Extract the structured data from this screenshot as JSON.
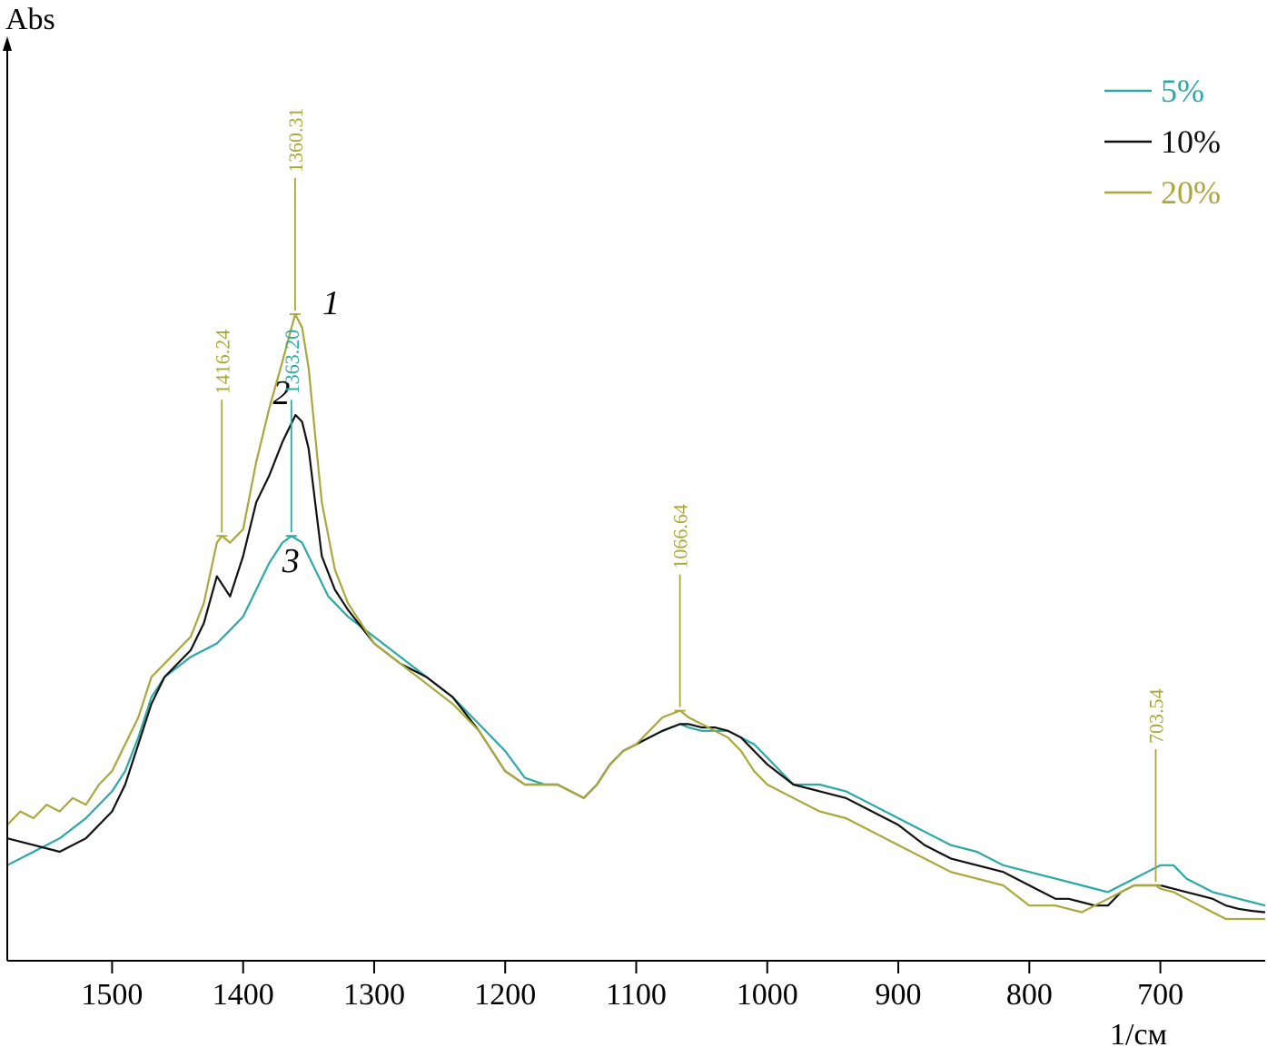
{
  "chart_data": {
    "type": "line",
    "ylabel": "Abs",
    "xlabel": "1/см",
    "xlim": [
      1580,
      620
    ],
    "x_ticks": [
      1500,
      1400,
      1300,
      1200,
      1100,
      1000,
      900,
      800,
      700
    ],
    "y_ticks_shown": false,
    "grid": false,
    "legend_position": "top-right",
    "colors": {
      "s5": "#2aa9a6",
      "s10": "#111111",
      "s20": "#a9a83a"
    },
    "series": [
      {
        "name": "5%",
        "curve_label": "3",
        "color": "#2aa9a6",
        "x": [
          1580,
          1560,
          1540,
          1520,
          1500,
          1490,
          1480,
          1470,
          1460,
          1440,
          1420,
          1410,
          1400,
          1390,
          1380,
          1370,
          1363.2,
          1355,
          1345,
          1335,
          1320,
          1300,
          1280,
          1260,
          1240,
          1220,
          1200,
          1185,
          1170,
          1160,
          1150,
          1140,
          1130,
          1120,
          1110,
          1100,
          1090,
          1080,
          1066.6,
          1060,
          1050,
          1040,
          1030,
          1020,
          1010,
          1000,
          980,
          960,
          940,
          920,
          900,
          880,
          860,
          840,
          820,
          800,
          780,
          760,
          740,
          730,
          720,
          710,
          700,
          690,
          680,
          670,
          660,
          650,
          640,
          630,
          620
        ],
        "y": [
          0.08,
          0.1,
          0.12,
          0.15,
          0.19,
          0.22,
          0.27,
          0.33,
          0.36,
          0.39,
          0.41,
          0.43,
          0.45,
          0.49,
          0.53,
          0.56,
          0.57,
          0.56,
          0.52,
          0.48,
          0.45,
          0.42,
          0.39,
          0.36,
          0.33,
          0.29,
          0.25,
          0.21,
          0.2,
          0.2,
          0.19,
          0.18,
          0.2,
          0.23,
          0.25,
          0.26,
          0.27,
          0.28,
          0.29,
          0.285,
          0.28,
          0.28,
          0.28,
          0.27,
          0.26,
          0.24,
          0.2,
          0.2,
          0.19,
          0.17,
          0.15,
          0.13,
          0.11,
          0.1,
          0.08,
          0.07,
          0.06,
          0.05,
          0.04,
          0.05,
          0.06,
          0.07,
          0.08,
          0.08,
          0.06,
          0.05,
          0.04,
          0.035,
          0.03,
          0.025,
          0.02
        ]
      },
      {
        "name": "10%",
        "curve_label": "2",
        "color": "#111111",
        "x": [
          1580,
          1560,
          1540,
          1520,
          1500,
          1490,
          1480,
          1470,
          1460,
          1440,
          1430,
          1420,
          1410,
          1400,
          1390,
          1380,
          1370,
          1360,
          1355,
          1350,
          1345,
          1340,
          1330,
          1320,
          1300,
          1280,
          1260,
          1240,
          1220,
          1200,
          1185,
          1170,
          1160,
          1150,
          1140,
          1130,
          1120,
          1110,
          1100,
          1090,
          1080,
          1066.6,
          1060,
          1050,
          1040,
          1030,
          1020,
          1010,
          1000,
          980,
          960,
          940,
          920,
          900,
          880,
          860,
          840,
          820,
          800,
          780,
          770,
          760,
          750,
          740,
          730,
          720,
          710,
          700,
          690,
          680,
          670,
          660,
          650,
          640,
          630,
          620
        ],
        "y": [
          0.12,
          0.11,
          0.1,
          0.12,
          0.16,
          0.2,
          0.26,
          0.32,
          0.36,
          0.4,
          0.44,
          0.51,
          0.48,
          0.54,
          0.62,
          0.66,
          0.71,
          0.75,
          0.74,
          0.7,
          0.62,
          0.54,
          0.49,
          0.46,
          0.41,
          0.38,
          0.36,
          0.33,
          0.28,
          0.22,
          0.2,
          0.2,
          0.2,
          0.19,
          0.18,
          0.2,
          0.23,
          0.25,
          0.26,
          0.27,
          0.28,
          0.29,
          0.29,
          0.285,
          0.285,
          0.28,
          0.27,
          0.25,
          0.23,
          0.2,
          0.19,
          0.18,
          0.16,
          0.14,
          0.11,
          0.09,
          0.08,
          0.07,
          0.05,
          0.03,
          0.03,
          0.025,
          0.02,
          0.02,
          0.04,
          0.05,
          0.05,
          0.05,
          0.045,
          0.04,
          0.035,
          0.03,
          0.02,
          0.015,
          0.012,
          0.01
        ]
      },
      {
        "name": "20%",
        "curve_label": "1",
        "color": "#a9a83a",
        "x": [
          1580,
          1570,
          1560,
          1550,
          1540,
          1530,
          1520,
          1510,
          1500,
          1490,
          1480,
          1470,
          1460,
          1450,
          1440,
          1430,
          1420,
          1416.2,
          1410,
          1400,
          1390,
          1380,
          1370,
          1360.3,
          1355,
          1350,
          1345,
          1340,
          1330,
          1320,
          1300,
          1280,
          1260,
          1240,
          1220,
          1200,
          1185,
          1170,
          1160,
          1150,
          1140,
          1130,
          1120,
          1110,
          1100,
          1090,
          1080,
          1066.6,
          1060,
          1050,
          1040,
          1030,
          1020,
          1010,
          1000,
          980,
          960,
          940,
          920,
          900,
          880,
          860,
          840,
          820,
          800,
          780,
          770,
          760,
          750,
          740,
          730,
          720,
          710,
          703.5,
          700,
          690,
          680,
          670,
          660,
          650,
          640,
          630,
          620
        ],
        "y": [
          0.14,
          0.16,
          0.15,
          0.17,
          0.16,
          0.18,
          0.17,
          0.2,
          0.22,
          0.26,
          0.3,
          0.36,
          0.38,
          0.4,
          0.42,
          0.47,
          0.56,
          0.57,
          0.56,
          0.58,
          0.68,
          0.76,
          0.83,
          0.9,
          0.88,
          0.82,
          0.72,
          0.62,
          0.52,
          0.47,
          0.41,
          0.38,
          0.35,
          0.32,
          0.28,
          0.22,
          0.2,
          0.2,
          0.2,
          0.19,
          0.18,
          0.2,
          0.23,
          0.25,
          0.26,
          0.28,
          0.3,
          0.31,
          0.3,
          0.29,
          0.28,
          0.27,
          0.25,
          0.22,
          0.2,
          0.18,
          0.16,
          0.15,
          0.13,
          0.11,
          0.09,
          0.07,
          0.06,
          0.05,
          0.02,
          0.02,
          0.015,
          0.01,
          0.02,
          0.03,
          0.04,
          0.05,
          0.05,
          0.05,
          0.045,
          0.04,
          0.03,
          0.02,
          0.01,
          0.0,
          0.0,
          0.0,
          0.0
        ]
      }
    ],
    "peak_annotations": [
      {
        "label": "1416.24",
        "x": 1416.24,
        "y": 0.57,
        "color": "#a9a83a"
      },
      {
        "label": "1360.31",
        "x": 1360.31,
        "y": 0.9,
        "color": "#a9a83a"
      },
      {
        "label": "1363.20",
        "x": 1363.2,
        "y": 0.57,
        "color": "#2aa9a6"
      },
      {
        "label": "1066.64",
        "x": 1066.64,
        "y": 0.31,
        "color": "#a9a83a"
      },
      {
        "label": "703.54",
        "x": 703.54,
        "y": 0.05,
        "color": "#a9a83a"
      }
    ]
  }
}
